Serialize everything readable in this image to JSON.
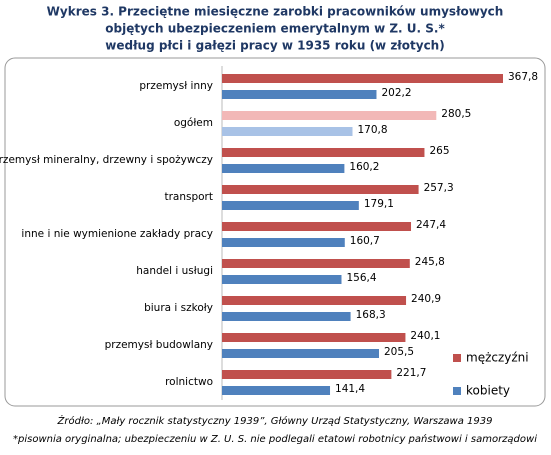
{
  "chart_data": {
    "type": "hbar",
    "title": [
      "Wykres 3. Przeciętne miesięczne  zarobki pracowników umysłowych",
      "objętych ubezpieczeniem emerytalnym w Z. U. S.*",
      "według płci i gałęzi pracy w 1935  roku (w złotych)"
    ],
    "categories": [
      "przemysł inny",
      "ogółem",
      "przemysł mineralny, drzewny i spożywczy",
      "transport",
      "inne i nie wymienione zakłady pracy",
      "handel i usługi",
      "biura i szkoły",
      "przemysł budowlany",
      "rolnictwo"
    ],
    "series": [
      {
        "name": "mężczyźni",
        "color": "#c0504d",
        "highlight_color": "#f2b8b7",
        "values": [
          367.8,
          280.5,
          265,
          257.3,
          247.4,
          245.8,
          240.9,
          240.1,
          221.7
        ],
        "value_labels": [
          "367,8",
          "280,5",
          "265",
          "257,3",
          "247,4",
          "245,8",
          "240,9",
          "240,1",
          "221,7"
        ]
      },
      {
        "name": "kobiety",
        "color": "#4f81bd",
        "highlight_color": "#a8c2e6",
        "values": [
          202.2,
          170.8,
          160.2,
          179.1,
          160.7,
          156.4,
          168.3,
          205.5,
          141.4
        ],
        "value_labels": [
          "202,2",
          "170,8",
          "160,2",
          "179,1",
          "160,7",
          "156,4",
          "168,3",
          "205,5",
          "141,4"
        ]
      }
    ],
    "highlight_index": 1,
    "legend": "right",
    "footnotes": [
      "Źródło: „Mały rocznik statystyczny 1939”, Główny Urząd Statystyczny, Warszawa 1939",
      "*pisownia oryginalna; ubezpieczeniu w Z. U. S. nie podlegali etatowi robotnicy państwowi i samorządowi"
    ]
  }
}
